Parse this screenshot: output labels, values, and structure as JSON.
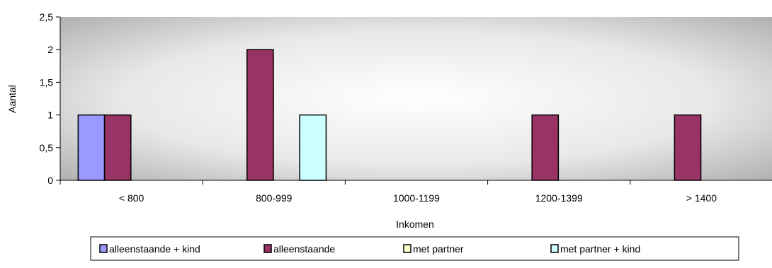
{
  "chart_data": {
    "type": "bar",
    "title": "",
    "xlabel": "Inkomen",
    "ylabel": "Aantal",
    "categories": [
      "< 800",
      "800-999",
      "1000-1199",
      "1200-1399",
      "> 1400"
    ],
    "ylim": [
      0,
      2.5
    ],
    "yticks": [
      0,
      0.5,
      1,
      1.5,
      2,
      2.5
    ],
    "ytick_labels": [
      "0",
      "0,5",
      "1",
      "1,5",
      "2",
      "2,5"
    ],
    "grid": false,
    "legend_position": "bottom",
    "series": [
      {
        "name": "alleenstaande + kind",
        "color": "#9999ff",
        "values": [
          1,
          0,
          0,
          0,
          0
        ]
      },
      {
        "name": "alleenstaande",
        "color": "#993366",
        "values": [
          1,
          2,
          0,
          1,
          1
        ]
      },
      {
        "name": "met partner",
        "color": "#ffffcc",
        "values": [
          0,
          0,
          0,
          0,
          0
        ]
      },
      {
        "name": "met partner + kind",
        "color": "#ccffff",
        "values": [
          0,
          1,
          0,
          0,
          0
        ]
      }
    ]
  }
}
